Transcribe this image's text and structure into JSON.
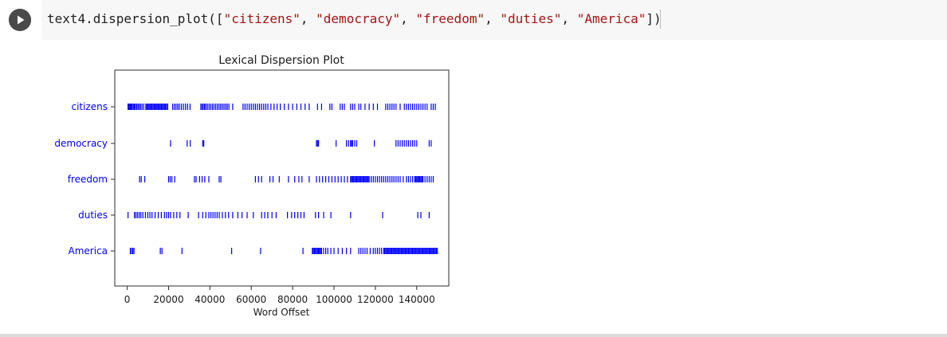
{
  "code": {
    "prefix": "text4.dispersion_plot([",
    "args": [
      "\"citizens\"",
      "\"democracy\"",
      "\"freedom\"",
      "\"duties\"",
      "\"America\""
    ],
    "separator": ", ",
    "suffix": "])"
  },
  "colors": {
    "marks": "#0000ff",
    "labels": "#0000ff",
    "string_literal": "#a31515",
    "run_button": "#4a4a4a"
  },
  "icons": {
    "run": "play-icon"
  },
  "chart_data": {
    "type": "scatter",
    "title": "Lexical Dispersion Plot",
    "xlabel": "Word Offset",
    "ylabel": "",
    "xlim": [
      -6000,
      155500
    ],
    "xticks": [
      0,
      20000,
      40000,
      60000,
      80000,
      100000,
      120000,
      140000
    ],
    "xtick_labels": [
      "0",
      "20000",
      "40000",
      "60000",
      "80000",
      "100000",
      "120000",
      "140000"
    ],
    "marker": "|",
    "grid": false,
    "series": [
      {
        "name": "citizens",
        "x": [
          400,
          800,
          1200,
          1600,
          2000,
          2400,
          3000,
          3500,
          4000,
          4600,
          5200,
          5800,
          6500,
          7200,
          8000,
          9000,
          9500,
          10000,
          10500,
          11000,
          11500,
          12000,
          12500,
          13000,
          13500,
          14000,
          14500,
          15000,
          15500,
          16000,
          16500,
          17000,
          17500,
          18000,
          18500,
          19000,
          19600,
          22000,
          22800,
          23600,
          24400,
          25200,
          26200,
          27200,
          28200,
          29200,
          30400,
          35600,
          36200,
          36800,
          37400,
          38000,
          38800,
          39600,
          40400,
          41200,
          42000,
          42800,
          43600,
          44400,
          45200,
          46000,
          46800,
          47600,
          48400,
          49200,
          51000,
          56000,
          57000,
          58000,
          59000,
          60000,
          61000,
          62000,
          63000,
          64000,
          65000,
          66000,
          67000,
          68000,
          69500,
          71000,
          72500,
          74000,
          76000,
          78000,
          80000,
          82000,
          84000,
          86000,
          88000,
          92000,
          94000,
          98000,
          99000,
          103000,
          104000,
          105000,
          108000,
          109000,
          110000,
          112000,
          113000,
          115000,
          117000,
          119000,
          121000,
          125000,
          126000,
          127000,
          128000,
          129000,
          130000,
          132000,
          134000,
          135000,
          136000,
          137000,
          138000,
          139000,
          140000,
          141000,
          142000,
          143000,
          144000,
          145000,
          147000,
          148000,
          149000
        ]
      },
      {
        "name": "democracy",
        "x": [
          21000,
          29000,
          30500,
          36500,
          37000,
          91500,
          92000,
          92500,
          101000,
          106000,
          107000,
          108000,
          108500,
          109000,
          110000,
          111000,
          119500,
          130000,
          131000,
          132000,
          133000,
          134000,
          135000,
          136000,
          137000,
          138000,
          139000,
          140000,
          146000,
          147000
        ]
      },
      {
        "name": "freedom",
        "x": [
          6000,
          6800,
          8500,
          20000,
          20800,
          21600,
          23000,
          32500,
          33300,
          35000,
          36200,
          37500,
          39500,
          44500,
          45300,
          62000,
          63500,
          65000,
          69000,
          70500,
          73500,
          78000,
          81000,
          83000,
          84500,
          88000,
          91500,
          93000,
          94500,
          96000,
          97500,
          99000,
          100500,
          102000,
          103500,
          105000,
          106500,
          108000,
          108500,
          109000,
          109500,
          110000,
          110500,
          111000,
          111500,
          112000,
          112500,
          113000,
          113500,
          114000,
          114500,
          115000,
          115500,
          116000,
          116500,
          117000,
          118000,
          119000,
          120000,
          121000,
          122000,
          123000,
          124000,
          125000,
          126000,
          127000,
          128000,
          129000,
          130000,
          131000,
          132000,
          133500,
          135000,
          136000,
          137000,
          138000,
          139000,
          139500,
          140000,
          140500,
          141000,
          141500,
          142000,
          142500,
          143000,
          144000,
          145000,
          146000,
          147000,
          148000
        ]
      },
      {
        "name": "duties",
        "x": [
          400,
          3500,
          4200,
          5000,
          5800,
          6600,
          7600,
          8800,
          10000,
          11000,
          12000,
          13500,
          15000,
          16500,
          18000,
          19000,
          20000,
          21000,
          22500,
          24000,
          25500,
          29500,
          34500,
          36500,
          38000,
          39500,
          40500,
          41500,
          42500,
          43500,
          44500,
          46000,
          47500,
          49000,
          51000,
          53500,
          55500,
          58000,
          61000,
          65000,
          66500,
          68000,
          70000,
          72000,
          77500,
          79500,
          81000,
          82500,
          84000,
          85500,
          91000,
          92500,
          95000,
          98500,
          108000,
          123500,
          140500,
          142000,
          146000
        ]
      },
      {
        "name": "America",
        "x": [
          1500,
          2100,
          2700,
          3300,
          16000,
          16800,
          26500,
          50500,
          64500,
          85000,
          89500,
          90000,
          90500,
          91000,
          91500,
          92000,
          92500,
          93000,
          93500,
          94000,
          95000,
          96000,
          97000,
          98500,
          100000,
          102000,
          104000,
          106000,
          108000,
          112000,
          113000,
          114000,
          115000,
          116000,
          117500,
          119000,
          120000,
          121000,
          122000,
          123000,
          124000,
          124500,
          125000,
          125500,
          126000,
          126500,
          127000,
          127500,
          128000,
          128500,
          129000,
          129500,
          130000,
          130500,
          131000,
          131500,
          132000,
          132500,
          133000,
          133500,
          134000,
          134500,
          135000,
          135500,
          136000,
          136500,
          137000,
          137500,
          138000,
          138500,
          139000,
          139500,
          140000,
          140500,
          141000,
          141500,
          142000,
          142500,
          143000,
          143500,
          144000,
          144500,
          145000,
          145500,
          146000,
          146500,
          147000,
          147500,
          148000,
          148500,
          149000,
          149500,
          150000
        ]
      }
    ]
  }
}
